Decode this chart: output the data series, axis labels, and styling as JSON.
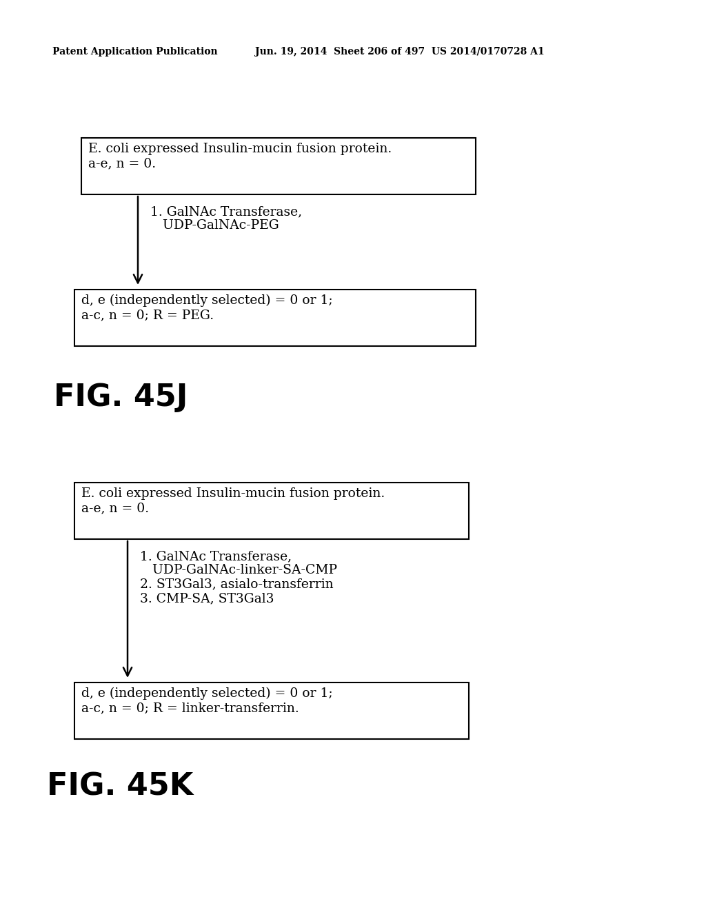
{
  "background_color": "#ffffff",
  "header_line1": "Patent Application Publication",
  "header_line2": "Jun. 19, 2014  Sheet 206 of 497  US 2014/0170728 A1",
  "fig45j": {
    "box1_lines": [
      "E. coli expressed Insulin-mucin fusion protein.",
      "a-e, n = 0."
    ],
    "arrow_label_lines": [
      "1. GalNAc Transferase,",
      "   UDP-GalNAc-PEG"
    ],
    "box2_lines": [
      "d, e (independently selected) = 0 or 1;",
      "a-c, n = 0; R = PEG."
    ],
    "fig_label": "FIG. 45J"
  },
  "fig45k": {
    "box1_lines": [
      "E. coli expressed Insulin-mucin fusion protein.",
      "a-e, n = 0."
    ],
    "arrow_label_lines": [
      "1. GalNAc Transferase,",
      "   UDP-GalNAc-linker-SA-CMP",
      "2. ST3Gal3, asialo-transferrin",
      "3. CMP-SA, ST3Gal3"
    ],
    "box2_lines": [
      "d, e (independently selected) = 0 or 1;",
      "a-c, n = 0; R = linker-transferrin."
    ],
    "fig_label": "FIG. 45K"
  }
}
